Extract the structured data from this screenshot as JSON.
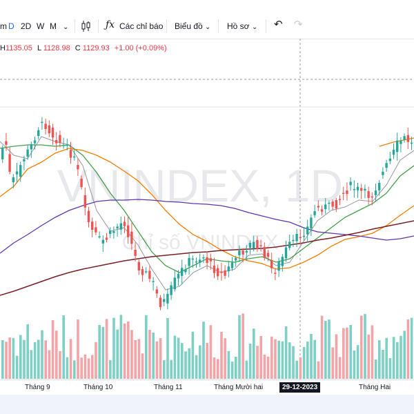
{
  "toolbar": {
    "intervals": [
      "m",
      "D",
      "2D",
      "W",
      "M"
    ],
    "active_interval": "D",
    "indicators_label": "Các chỉ báo",
    "chart_label": "Biểu đồ",
    "profile_label": "Hồ sơ"
  },
  "ohlc": {
    "h_key": "H",
    "h": "1135.05",
    "l_key": "L",
    "l": "1128.98",
    "c_key": "C",
    "c": "1129.93",
    "change": "+1.00 (+0.09%)"
  },
  "watermark": {
    "title": "VNINDEX, 1D",
    "subtitle": "Chỉ số VNINDEX"
  },
  "time_axis": {
    "labels": [
      "Tháng 9",
      "Tháng 10",
      "Tháng 11",
      "Tháng Mười hai",
      "29-12-2023",
      "Tháng Hai"
    ],
    "highlighted": "29-12-2023"
  },
  "colors": {
    "up": "#26a69a",
    "down": "#ef5350",
    "vol_up": "#7dd0c4",
    "vol_down": "#f4a3a7",
    "ma_gray": "#9598a1",
    "ma_green": "#43a047",
    "ma_orange": "#f57c00",
    "ma_purple": "#5e35b1",
    "ma_maroon": "#7b1e22"
  }
}
